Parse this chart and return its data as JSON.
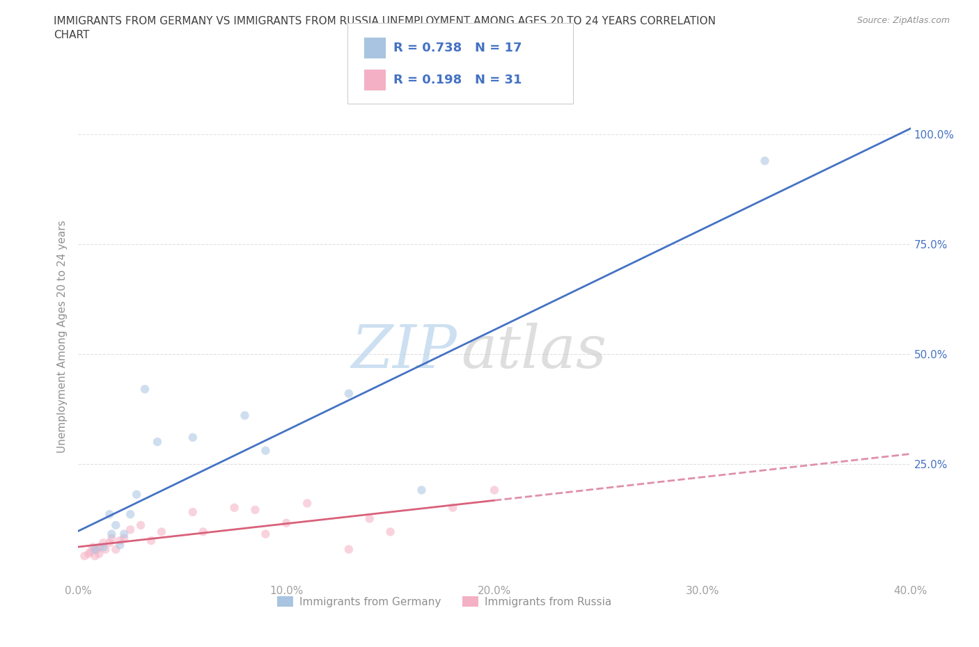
{
  "title": "IMMIGRANTS FROM GERMANY VS IMMIGRANTS FROM RUSSIA UNEMPLOYMENT AMONG AGES 20 TO 24 YEARS CORRELATION\nCHART",
  "source": "Source: ZipAtlas.com",
  "ylabel_label": "Unemployment Among Ages 20 to 24 years",
  "legend_label1": "Immigrants from Germany",
  "legend_label2": "Immigrants from Russia",
  "R1": 0.738,
  "N1": 17,
  "R2": 0.198,
  "N2": 31,
  "watermark_zip": "ZIP",
  "watermark_atlas": "atlas",
  "xlim": [
    0.0,
    0.4
  ],
  "ylim": [
    -0.02,
    1.1
  ],
  "xticks": [
    0.0,
    0.1,
    0.2,
    0.3,
    0.4
  ],
  "xtick_labels": [
    "0.0%",
    "10.0%",
    "20.0%",
    "30.0%",
    "40.0%"
  ],
  "yticks": [
    0.0,
    0.25,
    0.5,
    0.75,
    1.0
  ],
  "ytick_right_labels": [
    "",
    "25.0%",
    "50.0%",
    "75.0%",
    "100.0%"
  ],
  "germany_x": [
    0.008,
    0.012,
    0.015,
    0.016,
    0.018,
    0.02,
    0.022,
    0.025,
    0.028,
    0.032,
    0.038,
    0.055,
    0.08,
    0.09,
    0.13,
    0.165,
    0.33
  ],
  "germany_y": [
    0.055,
    0.06,
    0.135,
    0.09,
    0.11,
    0.065,
    0.09,
    0.135,
    0.18,
    0.42,
    0.3,
    0.31,
    0.36,
    0.28,
    0.41,
    0.19,
    0.94
  ],
  "russia_x": [
    0.003,
    0.005,
    0.006,
    0.007,
    0.008,
    0.009,
    0.01,
    0.01,
    0.012,
    0.013,
    0.015,
    0.016,
    0.018,
    0.02,
    0.022,
    0.025,
    0.03,
    0.035,
    0.04,
    0.055,
    0.06,
    0.075,
    0.085,
    0.09,
    0.1,
    0.11,
    0.13,
    0.14,
    0.15,
    0.18,
    0.2
  ],
  "russia_y": [
    0.04,
    0.045,
    0.05,
    0.06,
    0.04,
    0.055,
    0.06,
    0.045,
    0.07,
    0.055,
    0.07,
    0.08,
    0.055,
    0.075,
    0.08,
    0.1,
    0.11,
    0.075,
    0.095,
    0.14,
    0.095,
    0.15,
    0.145,
    0.09,
    0.115,
    0.16,
    0.055,
    0.125,
    0.095,
    0.15,
    0.19
  ],
  "germany_color": "#a8c4e0",
  "russia_color": "#f4b0c4",
  "germany_line_color": "#4472c4",
  "russia_line_solid_color": "#d9607a",
  "russia_line_dash_color": "#e090a8",
  "grid_color": "#e0e0e0",
  "bg_color": "#ffffff",
  "title_color": "#404040",
  "axis_label_color": "#909090",
  "tick_color": "#a0a0a0",
  "ytick_right_color": "#4472c4",
  "marker_size": 80,
  "marker_alpha": 0.55,
  "line_width": 2.0
}
